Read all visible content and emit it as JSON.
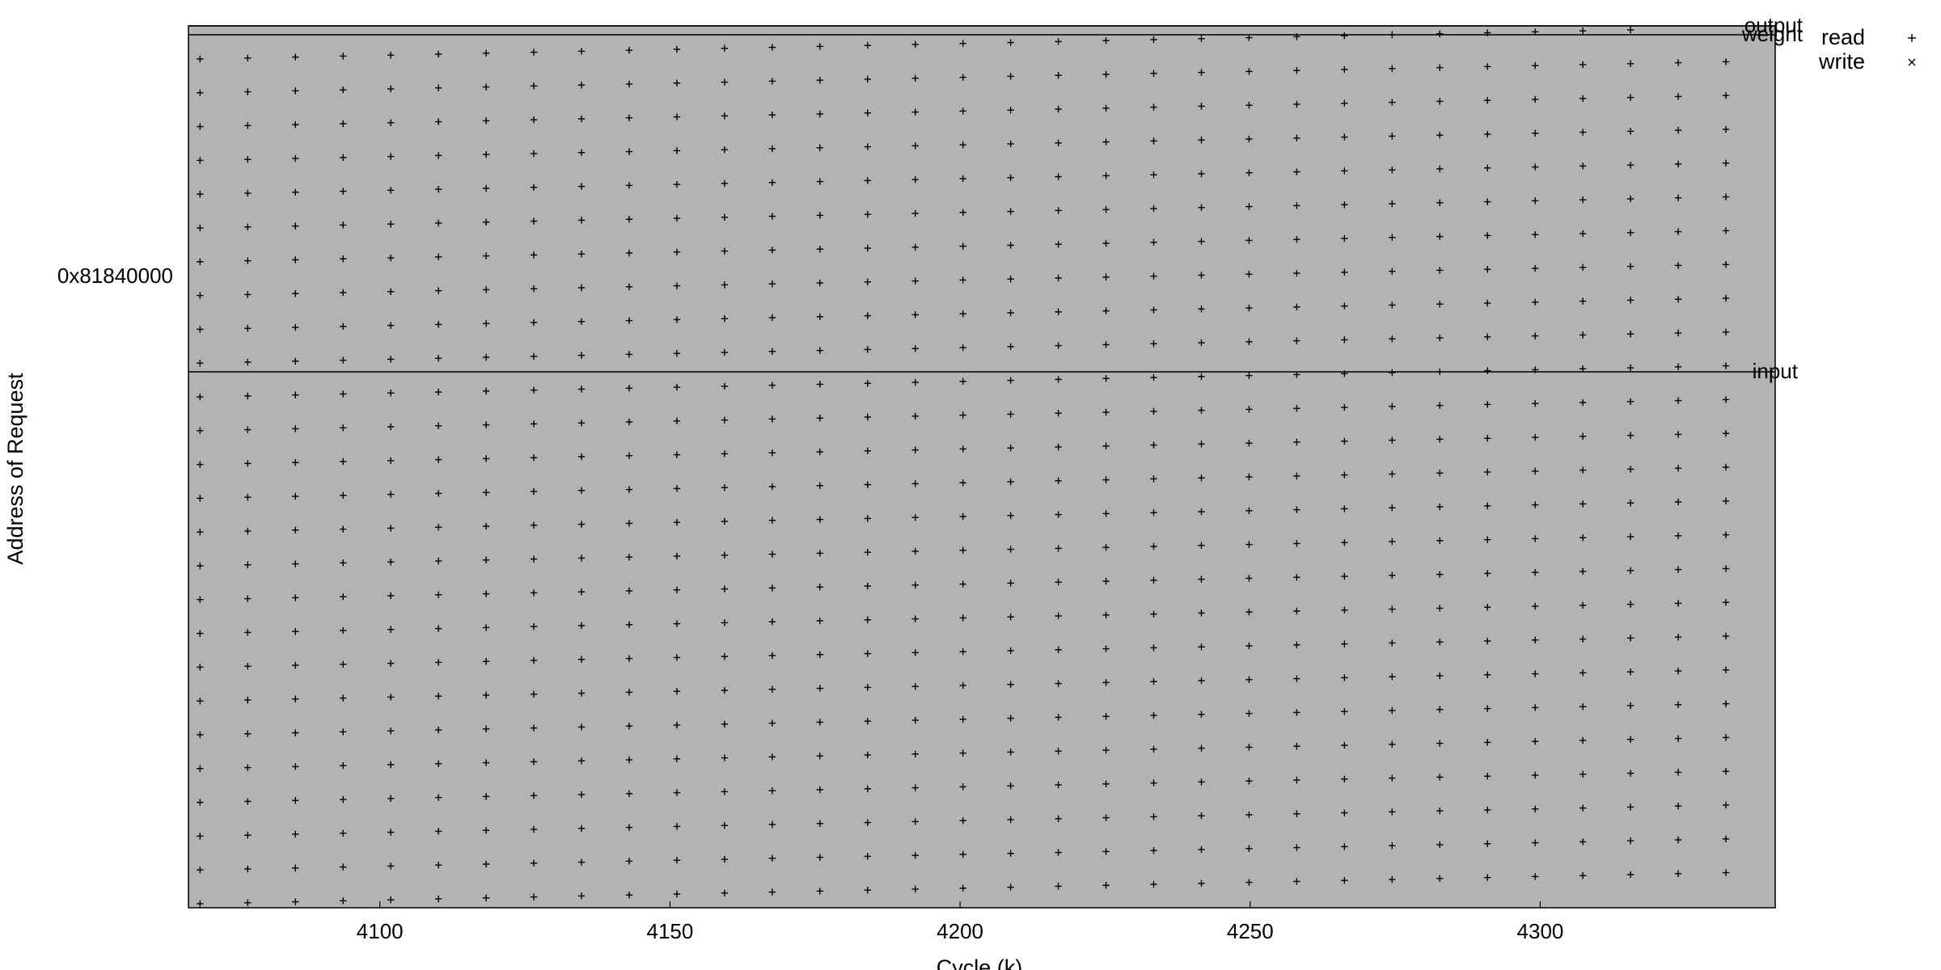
{
  "chart_data": {
    "type": "scatter",
    "title": "",
    "xlabel": "Cycle (k)",
    "ylabel": "Address of Request",
    "xlim": [
      4067,
      4340.5
    ],
    "x_ticks": [
      4100,
      4150,
      4200,
      4250,
      4300
    ],
    "y_tick_labels": [
      "0x81840000"
    ],
    "background_color": "#b3b3b3",
    "marker_color": "#000000",
    "grid": false,
    "legend_position": "top-right",
    "legend": [
      {
        "label": "read",
        "marker": "plus"
      },
      {
        "label": "write",
        "marker": "cross"
      }
    ],
    "regions": [
      {
        "label": "output"
      },
      {
        "label": "weight"
      },
      {
        "label": "input"
      }
    ],
    "series": [
      {
        "name": "read",
        "marker": "plus",
        "pattern": "regular grid of read requests: about 33 columns between cycle 4069 and 4332; each column sweeps addresses upward over time",
        "x_start": 4069,
        "x_end": 4332,
        "columns": 33,
        "rows_per_column": 26
      },
      {
        "name": "write",
        "marker": "cross",
        "pattern": "no write requests visible in this range",
        "x": [],
        "y": []
      }
    ]
  }
}
